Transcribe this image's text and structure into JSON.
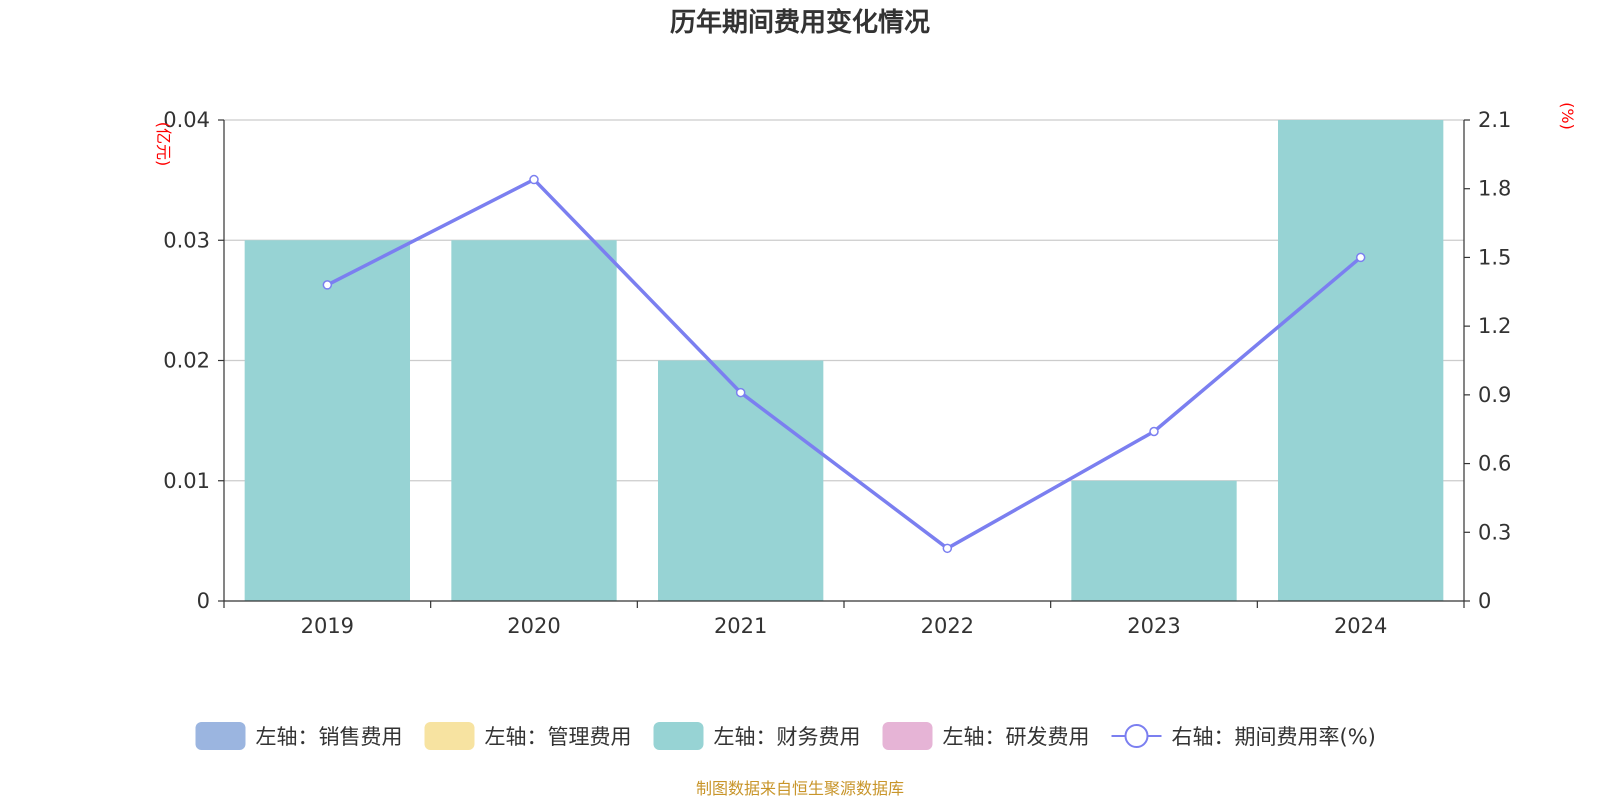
{
  "chart_data": {
    "type": "bar",
    "title": "历年期间费用变化情况",
    "categories": [
      "2019",
      "2020",
      "2021",
      "2022",
      "2023",
      "2024"
    ],
    "left_axis": {
      "unit_label": "(亿元)",
      "min": 0,
      "max": 0.04,
      "ticks": [
        "0",
        "0.01",
        "0.02",
        "0.03",
        "0.04"
      ]
    },
    "right_axis": {
      "unit_label": "(%)",
      "min": 0,
      "max": 2.1,
      "ticks": [
        "0",
        "0.3",
        "0.6",
        "0.9",
        "1.2",
        "1.5",
        "1.8",
        "2.1"
      ]
    },
    "series": [
      {
        "name": "左轴：销售费用",
        "type": "bar",
        "axis": "left",
        "color": "#9bb5e0",
        "values": [
          0,
          0,
          0,
          0,
          0,
          0
        ]
      },
      {
        "name": "左轴：管理费用",
        "type": "bar",
        "axis": "left",
        "color": "#f7e3a1",
        "values": [
          0,
          0,
          0,
          0,
          0,
          0
        ]
      },
      {
        "name": "左轴：财务费用",
        "type": "bar",
        "axis": "left",
        "color": "#97d3d4",
        "values": [
          0.03,
          0.03,
          0.02,
          0,
          0.01,
          0.04
        ]
      },
      {
        "name": "左轴：研发费用",
        "type": "bar",
        "axis": "left",
        "color": "#e6b4d6",
        "values": [
          0,
          0,
          0,
          0,
          0,
          0
        ]
      },
      {
        "name": "右轴：期间费用率(%)",
        "type": "line",
        "axis": "right",
        "color": "#7b7ff0",
        "values": [
          1.38,
          1.84,
          0.91,
          0.23,
          0.74,
          1.5
        ]
      }
    ],
    "grid": true,
    "legend_position": "bottom"
  },
  "footer": {
    "source": "制图数据来自恒生聚源数据库"
  }
}
